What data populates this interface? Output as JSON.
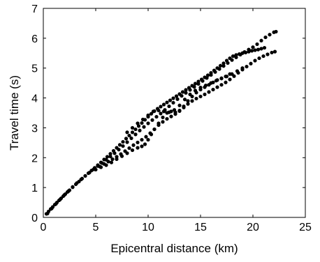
{
  "chart_data": {
    "type": "scatter",
    "title": "",
    "xlabel": "Epicentral distance (km)",
    "ylabel": "Travel time (s)",
    "xlim": [
      0,
      25
    ],
    "ylim": [
      0,
      7
    ],
    "xticks": [
      "0",
      "5",
      "10",
      "15",
      "20",
      "25"
    ],
    "yticks": [
      "0",
      "1",
      "2",
      "3",
      "4",
      "5",
      "6",
      "7"
    ],
    "grid": false,
    "marker_color": "#000000",
    "series": [
      {
        "values": [
          [
            0.3,
            0.12
          ],
          [
            0.5,
            0.2
          ],
          [
            0.7,
            0.28
          ],
          [
            0.9,
            0.35
          ],
          [
            1.1,
            0.43
          ],
          [
            1.3,
            0.5
          ],
          [
            1.5,
            0.57
          ],
          [
            1.7,
            0.64
          ],
          [
            1.9,
            0.71
          ],
          [
            2.1,
            0.78
          ],
          [
            2.3,
            0.85
          ],
          [
            2.5,
            0.91
          ],
          [
            2.8,
            1.01
          ],
          [
            3.1,
            1.11
          ],
          [
            3.4,
            1.2
          ],
          [
            3.7,
            1.3
          ],
          [
            4.0,
            1.39
          ],
          [
            4.3,
            1.48
          ],
          [
            4.6,
            1.57
          ],
          [
            4.9,
            1.66
          ],
          [
            5.2,
            1.75
          ],
          [
            5.5,
            1.84
          ],
          [
            5.8,
            1.94
          ],
          [
            6.1,
            2.03
          ],
          [
            6.4,
            2.13
          ],
          [
            6.7,
            2.23
          ],
          [
            7.0,
            2.33
          ],
          [
            7.3,
            2.43
          ],
          [
            7.6,
            2.53
          ],
          [
            7.9,
            2.64
          ],
          [
            8.2,
            2.74
          ],
          [
            8.5,
            2.85
          ],
          [
            8.8,
            2.95
          ],
          [
            9.1,
            3.06
          ],
          [
            9.4,
            3.16
          ],
          [
            9.7,
            3.27
          ],
          [
            10.0,
            3.37
          ],
          [
            10.3,
            3.47
          ],
          [
            10.6,
            3.56
          ],
          [
            10.9,
            3.64
          ],
          [
            11.2,
            3.71
          ],
          [
            11.5,
            3.78
          ],
          [
            11.8,
            3.85
          ],
          [
            12.1,
            3.92
          ],
          [
            12.4,
            3.99
          ],
          [
            12.7,
            4.06
          ],
          [
            13.0,
            4.13
          ],
          [
            13.3,
            4.2
          ],
          [
            13.6,
            4.27
          ],
          [
            13.9,
            4.34
          ],
          [
            14.2,
            4.41
          ],
          [
            14.5,
            4.48
          ],
          [
            14.8,
            4.55
          ],
          [
            15.1,
            4.62
          ],
          [
            15.4,
            4.69
          ],
          [
            15.7,
            4.76
          ],
          [
            16.0,
            4.84
          ],
          [
            16.3,
            4.92
          ],
          [
            16.6,
            5.0
          ],
          [
            16.9,
            5.08
          ],
          [
            17.2,
            5.16
          ],
          [
            17.5,
            5.25
          ],
          [
            17.8,
            5.33
          ],
          [
            18.1,
            5.4
          ],
          [
            18.4,
            5.44
          ],
          [
            18.7,
            5.47
          ],
          [
            19.0,
            5.5
          ],
          [
            19.3,
            5.52
          ],
          [
            19.6,
            5.55
          ],
          [
            19.9,
            5.58
          ],
          [
            20.2,
            5.6
          ],
          [
            20.5,
            5.62
          ],
          [
            20.8,
            5.65
          ],
          [
            21.1,
            5.68
          ]
        ]
      },
      {
        "values": [
          [
            0.4,
            0.13
          ],
          [
            0.8,
            0.3
          ],
          [
            1.2,
            0.45
          ],
          [
            1.6,
            0.6
          ],
          [
            2.0,
            0.75
          ],
          [
            2.4,
            0.88
          ],
          [
            2.8,
            1.02
          ],
          [
            3.2,
            1.15
          ],
          [
            3.6,
            1.27
          ],
          [
            4.0,
            1.39
          ],
          [
            4.4,
            1.5
          ],
          [
            4.8,
            1.61
          ],
          [
            5.2,
            1.72
          ],
          [
            5.6,
            1.82
          ],
          [
            6.0,
            1.93
          ],
          [
            6.4,
            2.04
          ],
          [
            6.8,
            2.15
          ],
          [
            7.2,
            2.27
          ],
          [
            7.6,
            2.39
          ],
          [
            8.0,
            2.52
          ],
          [
            8.4,
            2.65
          ],
          [
            8.8,
            2.78
          ],
          [
            9.2,
            2.91
          ],
          [
            9.6,
            3.03
          ],
          [
            10.0,
            3.15
          ],
          [
            10.4,
            3.26
          ],
          [
            10.8,
            3.37
          ],
          [
            11.2,
            3.48
          ],
          [
            11.6,
            3.6
          ],
          [
            12.0,
            3.72
          ],
          [
            12.4,
            3.84
          ],
          [
            12.8,
            3.96
          ],
          [
            13.2,
            4.07
          ],
          [
            13.6,
            4.17
          ],
          [
            14.0,
            4.27
          ],
          [
            14.4,
            4.37
          ],
          [
            14.8,
            4.47
          ],
          [
            15.2,
            4.57
          ],
          [
            15.6,
            4.67
          ],
          [
            16.0,
            4.77
          ],
          [
            16.4,
            4.87
          ],
          [
            16.8,
            4.97
          ],
          [
            17.2,
            5.07
          ],
          [
            17.6,
            5.17
          ],
          [
            18.0,
            5.27
          ],
          [
            18.4,
            5.36
          ],
          [
            18.8,
            5.45
          ],
          [
            19.2,
            5.54
          ],
          [
            19.6,
            5.62
          ],
          [
            20.0,
            5.7
          ],
          [
            20.4,
            5.8
          ],
          [
            20.8,
            5.92
          ],
          [
            21.2,
            6.03
          ],
          [
            21.6,
            6.12
          ],
          [
            22.0,
            6.2
          ],
          [
            22.2,
            6.22
          ]
        ]
      },
      {
        "values": [
          [
            5.0,
            1.6
          ],
          [
            5.4,
            1.7
          ],
          [
            5.8,
            1.79
          ],
          [
            6.2,
            1.87
          ],
          [
            6.6,
            1.95
          ],
          [
            7.0,
            2.03
          ],
          [
            7.4,
            2.12
          ],
          [
            7.8,
            2.22
          ],
          [
            8.2,
            2.32
          ],
          [
            8.6,
            2.42
          ],
          [
            9.0,
            2.51
          ],
          [
            9.4,
            2.6
          ],
          [
            9.8,
            2.7
          ],
          [
            10.2,
            2.82
          ],
          [
            10.6,
            2.95
          ],
          [
            11.0,
            3.09
          ],
          [
            11.4,
            3.2
          ],
          [
            11.8,
            3.3
          ],
          [
            12.2,
            3.38
          ],
          [
            12.6,
            3.46
          ],
          [
            13.0,
            3.56
          ],
          [
            13.4,
            3.68
          ],
          [
            13.8,
            3.8
          ],
          [
            14.2,
            3.9
          ],
          [
            14.6,
            3.98
          ],
          [
            15.0,
            4.05
          ],
          [
            15.4,
            4.12
          ],
          [
            15.8,
            4.2
          ],
          [
            16.2,
            4.28
          ],
          [
            16.6,
            4.36
          ],
          [
            17.0,
            4.44
          ],
          [
            17.4,
            4.52
          ],
          [
            17.8,
            4.62
          ],
          [
            18.2,
            4.73
          ],
          [
            18.6,
            4.84
          ],
          [
            19.0,
            4.95
          ],
          [
            19.4,
            5.05
          ],
          [
            19.8,
            5.15
          ],
          [
            20.2,
            5.25
          ],
          [
            20.6,
            5.33
          ],
          [
            21.0,
            5.4
          ],
          [
            21.4,
            5.46
          ],
          [
            21.8,
            5.52
          ],
          [
            22.1,
            5.55
          ]
        ]
      },
      {
        "values": [
          [
            5.5,
            1.68
          ],
          [
            6.0,
            1.75
          ],
          [
            6.5,
            1.84
          ],
          [
            7.0,
            1.95
          ],
          [
            7.5,
            2.05
          ],
          [
            8.0,
            2.15
          ],
          [
            8.5,
            2.25
          ],
          [
            9.0,
            2.33
          ],
          [
            9.4,
            2.38
          ],
          [
            9.7,
            2.45
          ],
          [
            10.0,
            2.6
          ],
          [
            10.3,
            2.78
          ],
          [
            10.6,
            2.95
          ],
          [
            11.0,
            3.15
          ],
          [
            11.4,
            3.35
          ],
          [
            11.8,
            3.5
          ],
          [
            12.2,
            3.55
          ],
          [
            12.6,
            3.52
          ],
          [
            13.0,
            3.58
          ],
          [
            13.4,
            3.72
          ],
          [
            13.8,
            3.9
          ],
          [
            14.2,
            4.05
          ],
          [
            14.6,
            4.18
          ],
          [
            15.0,
            4.28
          ],
          [
            15.4,
            4.36
          ],
          [
            15.8,
            4.44
          ],
          [
            16.2,
            4.52
          ],
          [
            16.6,
            4.6
          ],
          [
            17.0,
            4.66
          ],
          [
            17.4,
            4.72
          ],
          [
            17.8,
            4.8
          ]
        ]
      },
      {
        "values": [
          [
            8.0,
            2.85
          ],
          [
            8.5,
            3.0
          ],
          [
            9.0,
            3.15
          ],
          [
            9.5,
            3.28
          ],
          [
            10.0,
            3.42
          ],
          [
            10.5,
            3.55
          ],
          [
            11.0,
            3.58
          ],
          [
            11.5,
            3.55
          ],
          [
            12.0,
            3.52
          ],
          [
            12.5,
            3.6
          ],
          [
            13.0,
            3.75
          ],
          [
            13.5,
            3.95
          ],
          [
            14.0,
            4.12
          ],
          [
            14.5,
            4.25
          ],
          [
            15.0,
            4.35
          ],
          [
            15.5,
            4.42
          ],
          [
            16.0,
            4.5
          ],
          [
            16.5,
            4.58
          ],
          [
            17.0,
            4.65
          ],
          [
            17.5,
            4.72
          ],
          [
            18.0,
            4.8
          ],
          [
            18.5,
            4.9
          ],
          [
            19.0,
            5.0
          ]
        ]
      }
    ]
  }
}
